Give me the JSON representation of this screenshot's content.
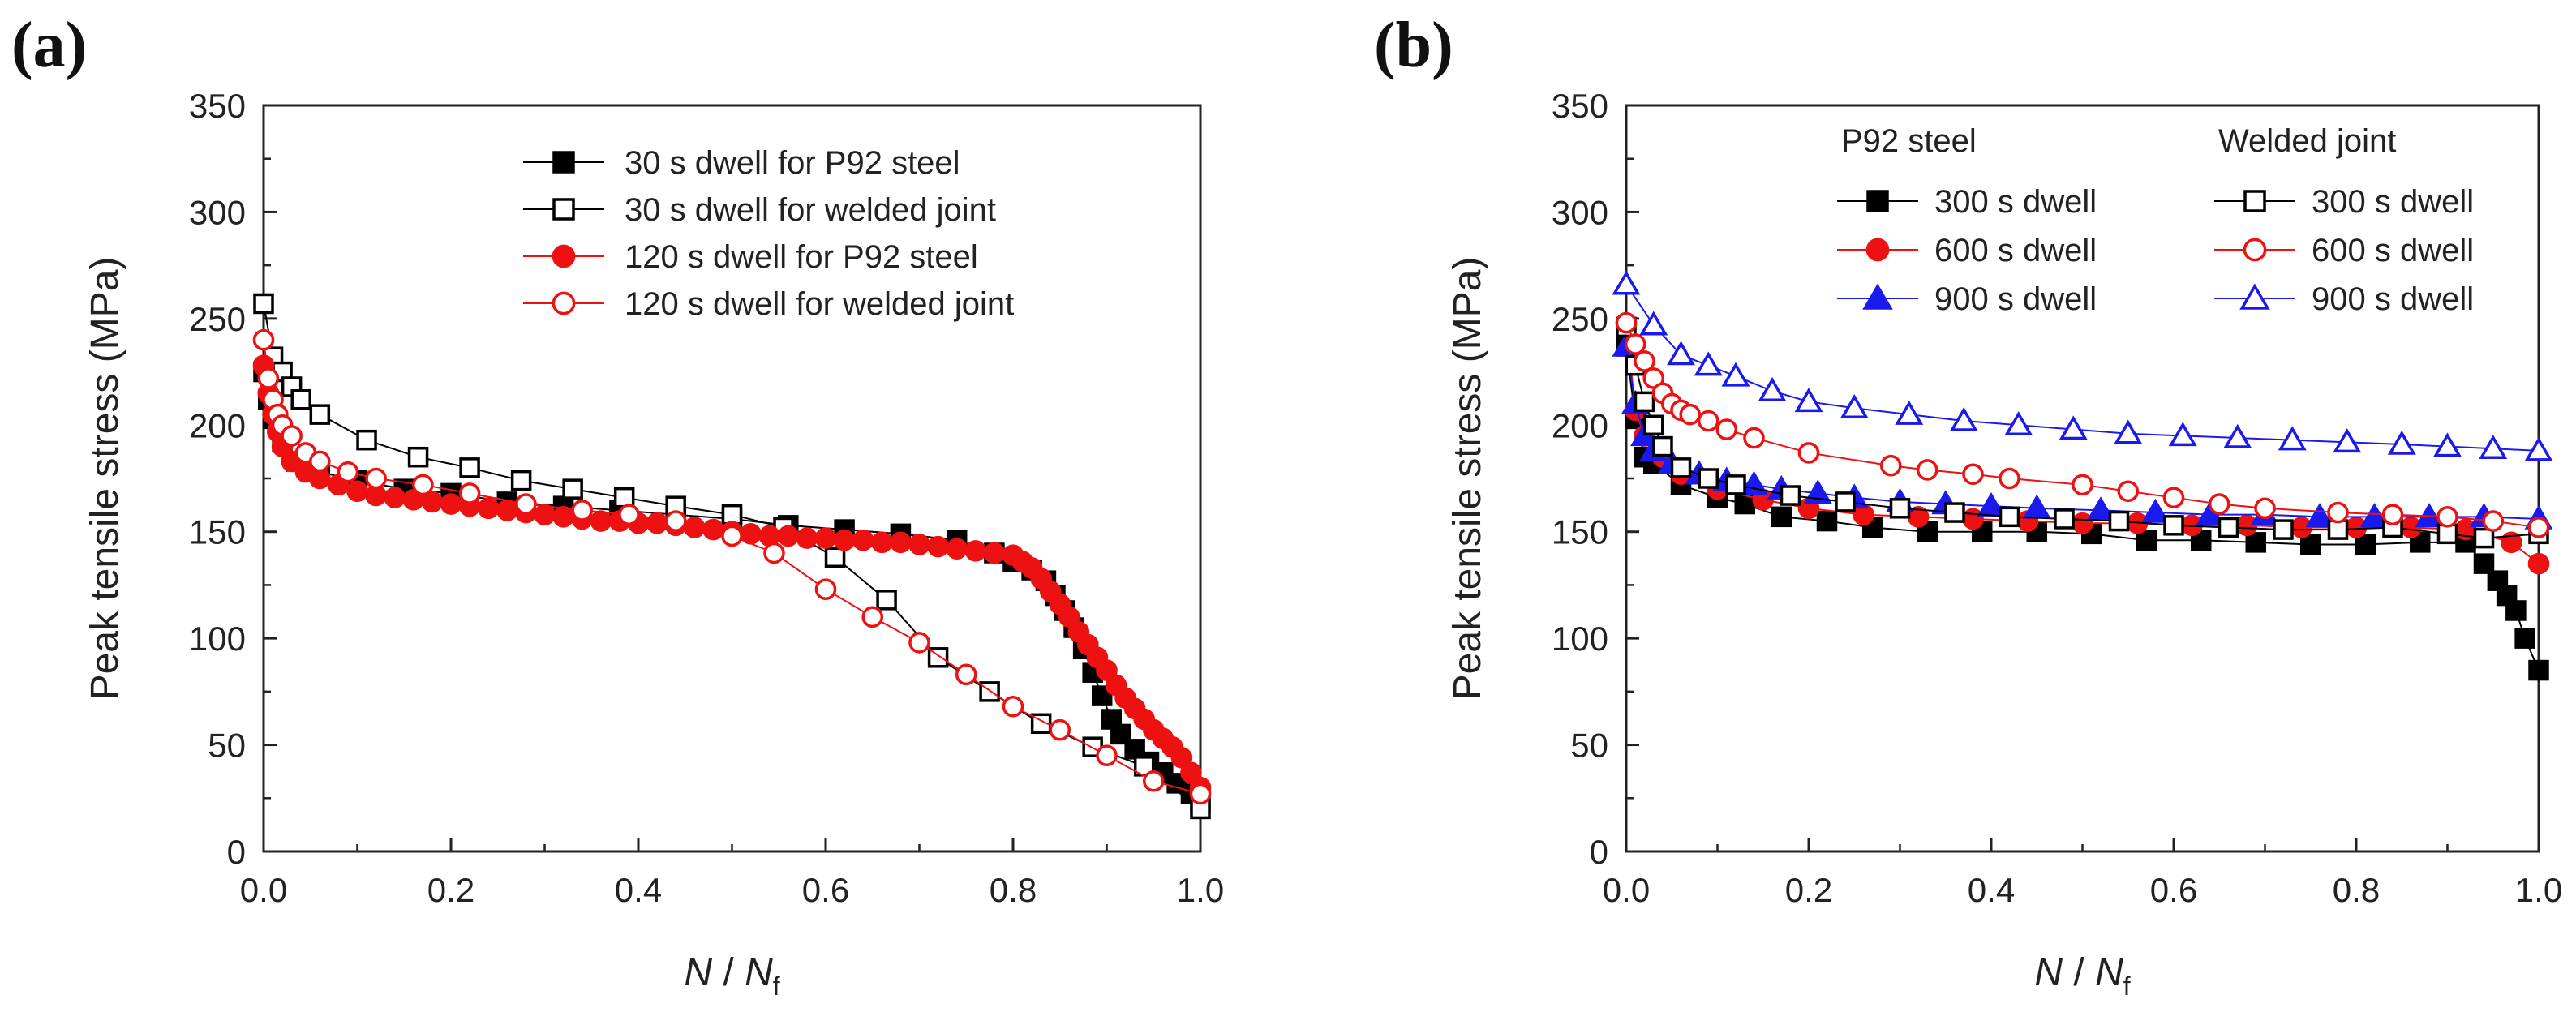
{
  "chart_data": [
    {
      "panel": "(a)",
      "type": "line",
      "xlabel_main": "N",
      "xlabel_sep": " / ",
      "xlabel_sub_base": "N",
      "xlabel_sub": "f",
      "ylabel": "Peak tensile stress (MPa)",
      "xlim": [
        0,
        1.0
      ],
      "ylim": [
        0,
        350
      ],
      "xticks": [
        0.0,
        0.2,
        0.4,
        0.6,
        0.8,
        1.0
      ],
      "xtick_labels": [
        "0.0",
        "0.2",
        "0.4",
        "0.6",
        "0.8",
        "1.0"
      ],
      "yticks": [
        0,
        50,
        100,
        150,
        200,
        250,
        300,
        350
      ],
      "ytick_labels": [
        "0",
        "50",
        "100",
        "150",
        "200",
        "250",
        "300",
        "350"
      ],
      "legend_position": "top-right",
      "series": [
        {
          "name": "30 s dwell for P92 steel",
          "color": "#000000",
          "marker": "square",
          "filled": true,
          "x": [
            0.0,
            0.005,
            0.01,
            0.02,
            0.035,
            0.06,
            0.1,
            0.15,
            0.2,
            0.26,
            0.32,
            0.38,
            0.44,
            0.5,
            0.56,
            0.62,
            0.68,
            0.74,
            0.78,
            0.8,
            0.82,
            0.835,
            0.845,
            0.855,
            0.865,
            0.875,
            0.885,
            0.895,
            0.905,
            0.915,
            0.93,
            0.945,
            0.96,
            0.975,
            0.99,
            1.0
          ],
          "y": [
            225,
            212,
            203,
            192,
            183,
            178,
            174,
            170,
            168,
            164,
            162,
            160,
            158,
            156,
            153,
            151,
            149,
            146,
            140,
            136,
            132,
            127,
            120,
            113,
            105,
            95,
            84,
            73,
            62,
            55,
            48,
            42,
            37,
            32,
            27,
            23
          ]
        },
        {
          "name": "30 s dwell for welded joint",
          "color": "#000000",
          "marker": "square",
          "filled": false,
          "x": [
            0.0,
            0.01,
            0.02,
            0.03,
            0.04,
            0.06,
            0.11,
            0.165,
            0.22,
            0.275,
            0.33,
            0.385,
            0.44,
            0.5,
            0.555,
            0.61,
            0.665,
            0.72,
            0.775,
            0.83,
            0.885,
            0.94,
            1.0
          ],
          "y": [
            257,
            232,
            225,
            218,
            212,
            205,
            193,
            185,
            180,
            174,
            170,
            166,
            162,
            158,
            152,
            138,
            118,
            91,
            75,
            60,
            49,
            40,
            20
          ]
        },
        {
          "name": "120 s dwell for P92 steel",
          "color": "#ee1111",
          "marker": "circle",
          "filled": true,
          "x": [
            0.0,
            0.005,
            0.01,
            0.015,
            0.02,
            0.03,
            0.045,
            0.06,
            0.08,
            0.1,
            0.12,
            0.14,
            0.16,
            0.18,
            0.2,
            0.22,
            0.24,
            0.26,
            0.28,
            0.3,
            0.32,
            0.34,
            0.36,
            0.38,
            0.4,
            0.42,
            0.44,
            0.46,
            0.48,
            0.5,
            0.52,
            0.54,
            0.56,
            0.58,
            0.6,
            0.62,
            0.64,
            0.66,
            0.68,
            0.7,
            0.72,
            0.74,
            0.76,
            0.78,
            0.8,
            0.81,
            0.82,
            0.83,
            0.84,
            0.85,
            0.86,
            0.87,
            0.88,
            0.89,
            0.9,
            0.91,
            0.92,
            0.93,
            0.94,
            0.95,
            0.96,
            0.97,
            0.98,
            0.99,
            1.0
          ],
          "y": [
            228,
            215,
            205,
            197,
            190,
            183,
            178,
            175,
            172,
            169,
            167,
            166,
            165,
            164,
            163,
            162,
            161,
            160,
            159,
            158,
            157,
            156,
            155,
            155,
            154,
            154,
            153,
            152,
            151,
            150,
            149,
            148,
            148,
            147,
            147,
            146,
            146,
            145,
            145,
            144,
            143,
            142,
            141,
            140,
            139,
            136,
            133,
            128,
            122,
            116,
            110,
            103,
            97,
            91,
            85,
            78,
            72,
            67,
            62,
            57,
            53,
            49,
            44,
            37,
            30
          ]
        },
        {
          "name": "120 s dwell for welded joint",
          "color": "#ee1111",
          "marker": "circle",
          "filled": false,
          "x": [
            0.0,
            0.005,
            0.01,
            0.015,
            0.02,
            0.03,
            0.045,
            0.06,
            0.09,
            0.12,
            0.17,
            0.22,
            0.28,
            0.34,
            0.39,
            0.44,
            0.5,
            0.545,
            0.6,
            0.65,
            0.7,
            0.75,
            0.8,
            0.85,
            0.9,
            0.95,
            1.0
          ],
          "y": [
            240,
            222,
            212,
            205,
            200,
            195,
            187,
            183,
            178,
            175,
            172,
            168,
            163,
            160,
            158,
            155,
            148,
            140,
            123,
            110,
            98,
            83,
            68,
            57,
            45,
            33,
            27
          ]
        }
      ]
    },
    {
      "panel": "(b)",
      "type": "line",
      "xlabel_main": "N",
      "xlabel_sep": " / ",
      "xlabel_sub_base": "N",
      "xlabel_sub": "f",
      "ylabel": "Peak tensile stress (MPa)",
      "xlim": [
        0,
        1.0
      ],
      "ylim": [
        0,
        350
      ],
      "xticks": [
        0.0,
        0.2,
        0.4,
        0.6,
        0.8,
        1.0
      ],
      "xtick_labels": [
        "0.0",
        "0.2",
        "0.4",
        "0.6",
        "0.8",
        "1.0"
      ],
      "yticks": [
        0,
        50,
        100,
        150,
        200,
        250,
        300,
        350
      ],
      "ytick_labels": [
        "0",
        "50",
        "100",
        "150",
        "200",
        "250",
        "300",
        "350"
      ],
      "legend_position": "top-right",
      "legend_heading_left": "P92 steel",
      "legend_heading_right": "Welded joint",
      "series": [
        {
          "name": "300 s dwell",
          "group": "P92 steel",
          "color": "#000000",
          "marker": "square",
          "filled": true,
          "x": [
            0.0,
            0.01,
            0.02,
            0.03,
            0.06,
            0.1,
            0.13,
            0.17,
            0.22,
            0.27,
            0.33,
            0.39,
            0.45,
            0.51,
            0.57,
            0.63,
            0.69,
            0.75,
            0.81,
            0.87,
            0.92,
            0.94,
            0.955,
            0.965,
            0.975,
            0.985,
            1.0
          ],
          "y": [
            237,
            203,
            185,
            182,
            172,
            166,
            163,
            157,
            155,
            152,
            150,
            150,
            150,
            149,
            146,
            146,
            145,
            144,
            144,
            145,
            145,
            135,
            127,
            120,
            113,
            100,
            85
          ]
        },
        {
          "name": "600 s dwell",
          "group": "P92 steel",
          "color": "#ee1111",
          "marker": "circle",
          "filled": true,
          "x": [
            0.0,
            0.01,
            0.02,
            0.04,
            0.06,
            0.1,
            0.15,
            0.2,
            0.26,
            0.32,
            0.38,
            0.44,
            0.5,
            0.56,
            0.62,
            0.68,
            0.74,
            0.8,
            0.86,
            0.92,
            0.97,
            1.0
          ],
          "y": [
            248,
            207,
            195,
            185,
            177,
            170,
            165,
            161,
            158,
            157,
            156,
            155,
            154,
            154,
            153,
            153,
            152,
            152,
            152,
            151,
            145,
            135
          ]
        },
        {
          "name": "900 s dwell",
          "group": "P92 steel",
          "color": "#1a1aee",
          "marker": "triangle",
          "filled": true,
          "x": [
            0.0,
            0.01,
            0.02,
            0.03,
            0.05,
            0.08,
            0.11,
            0.14,
            0.17,
            0.21,
            0.25,
            0.3,
            0.35,
            0.4,
            0.45,
            0.52,
            0.58,
            0.64,
            0.7,
            0.76,
            0.82,
            0.88,
            0.94,
            1.0
          ],
          "y": [
            237,
            210,
            195,
            188,
            182,
            177,
            174,
            172,
            170,
            168,
            166,
            164,
            163,
            162,
            161,
            160,
            159,
            158,
            158,
            157,
            157,
            157,
            157,
            156
          ]
        },
        {
          "name": "300 s dwell",
          "group": "Welded joint",
          "color": "#000000",
          "marker": "square",
          "filled": false,
          "x": [
            0.0,
            0.01,
            0.02,
            0.03,
            0.04,
            0.06,
            0.09,
            0.12,
            0.18,
            0.24,
            0.3,
            0.36,
            0.42,
            0.48,
            0.54,
            0.6,
            0.66,
            0.72,
            0.78,
            0.84,
            0.9,
            0.94,
            1.0
          ],
          "y": [
            246,
            228,
            211,
            200,
            190,
            180,
            175,
            172,
            167,
            164,
            161,
            159,
            157,
            156,
            155,
            153,
            152,
            151,
            151,
            152,
            149,
            147,
            149
          ]
        },
        {
          "name": "600 s dwell",
          "group": "Welded joint",
          "color": "#ee1111",
          "marker": "circle",
          "filled": false,
          "x": [
            0.0,
            0.01,
            0.02,
            0.03,
            0.04,
            0.05,
            0.06,
            0.07,
            0.09,
            0.11,
            0.14,
            0.2,
            0.29,
            0.33,
            0.38,
            0.42,
            0.5,
            0.55,
            0.6,
            0.65,
            0.7,
            0.78,
            0.84,
            0.9,
            0.95,
            1.0
          ],
          "y": [
            248,
            238,
            230,
            222,
            215,
            210,
            207,
            205,
            202,
            198,
            194,
            187,
            181,
            179,
            177,
            175,
            172,
            169,
            166,
            163,
            161,
            159,
            158,
            157,
            155,
            152
          ]
        },
        {
          "name": "900 s dwell",
          "group": "Welded joint",
          "color": "#1a1aee",
          "marker": "triangle",
          "filled": false,
          "x": [
            0.0,
            0.03,
            0.06,
            0.09,
            0.12,
            0.16,
            0.2,
            0.25,
            0.31,
            0.37,
            0.43,
            0.49,
            0.55,
            0.61,
            0.67,
            0.73,
            0.79,
            0.85,
            0.9,
            0.95,
            1.0
          ],
          "y": [
            266,
            247,
            233,
            228,
            223,
            216,
            211,
            208,
            205,
            202,
            200,
            198,
            196,
            195,
            194,
            193,
            192,
            191,
            190,
            189,
            188
          ]
        }
      ]
    }
  ]
}
